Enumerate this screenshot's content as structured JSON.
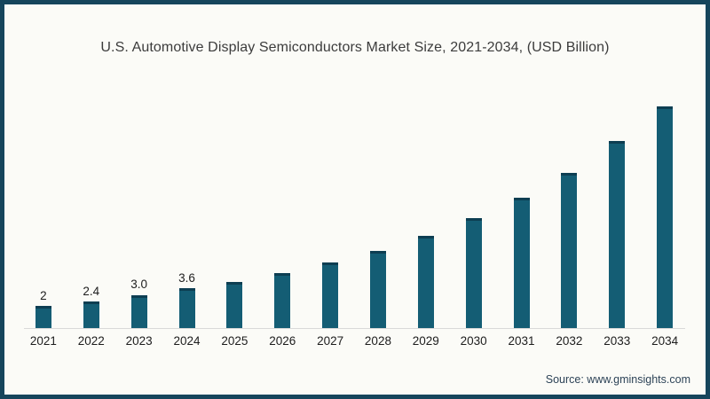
{
  "title": "U.S. Automotive Display Semiconductors Market Size, 2021-2034, (USD Billion)",
  "source": "Source: www.gminsights.com",
  "colors": {
    "frame_border": "#16455c",
    "background": "#fbfbf7",
    "bar_fill": "#145d74",
    "bar_cap": "#0d3e52",
    "axis_line": "#d9d9d9",
    "title_text": "#3c3c3c",
    "label_text": "#1d1d1d",
    "source_text": "#2d4357"
  },
  "chart_data": {
    "type": "bar",
    "title": "U.S. Automotive Display Semiconductors Market Size, 2021-2034, (USD Billion)",
    "unit": "USD Billion",
    "categories": [
      "2021",
      "2022",
      "2023",
      "2024",
      "2025",
      "2026",
      "2027",
      "2028",
      "2029",
      "2030",
      "2031",
      "2032",
      "2033",
      "2034"
    ],
    "values": [
      2,
      2.4,
      3.0,
      3.6,
      4.2,
      5.0,
      5.9,
      7.0,
      8.3,
      9.9,
      11.8,
      14.0,
      16.9,
      20.0
    ],
    "value_labels": [
      "2",
      "2.4",
      "3.0",
      "3.6",
      "",
      "",
      "",
      "",
      "",
      "",
      "",
      "",
      "",
      ""
    ],
    "xlabel": "",
    "ylabel": "",
    "ylim": [
      0,
      21
    ],
    "grid": false,
    "legend": false
  }
}
